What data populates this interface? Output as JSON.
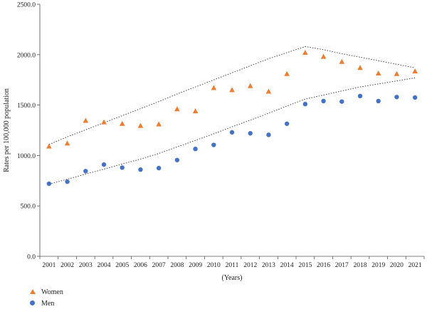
{
  "chart_data": {
    "type": "scatter",
    "xlabel": "(Years)",
    "ylabel": "Rates per 100,000 population",
    "ylim": [
      0,
      2500
    ],
    "yticks": [
      "0.0",
      "500.0",
      "1000.0",
      "1500.0",
      "2000.0",
      "2500.0"
    ],
    "categories": [
      "2001",
      "2002",
      "2003",
      "2004",
      "2005",
      "2006",
      "2007",
      "2008",
      "2009",
      "2010",
      "2011",
      "2012",
      "2013",
      "2014",
      "2015",
      "2016",
      "2017",
      "2018",
      "2019",
      "2020",
      "2021"
    ],
    "grid": false,
    "legend_position": "bottom-left",
    "series": [
      {
        "name": "Women",
        "marker": "triangle",
        "color": "#ED7D31",
        "values": [
          1090,
          1120,
          1345,
          1330,
          1315,
          1295,
          1310,
          1460,
          1440,
          1670,
          1650,
          1690,
          1635,
          1810,
          2020,
          1980,
          1930,
          1870,
          1815,
          1810,
          1835
        ],
        "trend": [
          1110,
          1185,
          1255,
          1325,
          1395,
          1465,
          1535,
          1610,
          1680,
          1750,
          1820,
          1890,
          1960,
          2020,
          2080,
          2050,
          2010,
          1975,
          1940,
          1905,
          1870
        ]
      },
      {
        "name": "Men",
        "marker": "circle",
        "color": "#4472C4",
        "values": [
          720,
          740,
          845,
          910,
          880,
          860,
          875,
          955,
          1065,
          1105,
          1230,
          1220,
          1205,
          1315,
          1510,
          1540,
          1535,
          1590,
          1540,
          1580,
          1575
        ],
        "trend": [
          715,
          765,
          815,
          865,
          915,
          965,
          1020,
          1085,
          1150,
          1215,
          1285,
          1350,
          1420,
          1490,
          1560,
          1600,
          1640,
          1680,
          1710,
          1740,
          1770
        ]
      }
    ]
  }
}
